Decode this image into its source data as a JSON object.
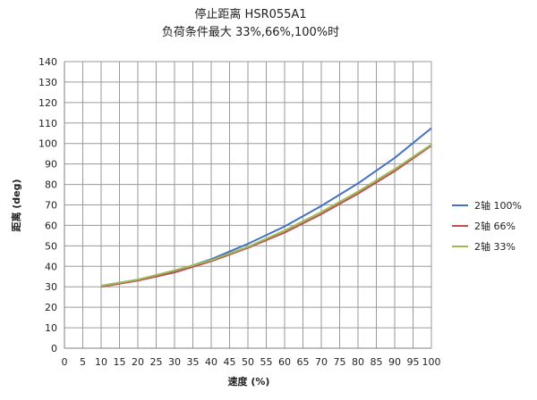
{
  "chart_data": {
    "type": "line",
    "title": "停止距离 HSR055A1",
    "subtitle": "负荷条件最大 33%,66%,100%时",
    "xlabel": "速度 (%)",
    "ylabel": "距离 (deg)",
    "xlim": [
      0,
      100
    ],
    "ylim": [
      0,
      140
    ],
    "x_ticks": [
      0,
      5,
      10,
      15,
      20,
      25,
      30,
      35,
      40,
      45,
      50,
      55,
      60,
      65,
      70,
      75,
      80,
      85,
      90,
      95,
      100
    ],
    "y_ticks": [
      0,
      10,
      20,
      30,
      40,
      50,
      60,
      70,
      80,
      90,
      100,
      110,
      120,
      130,
      140
    ],
    "grid": "horizontal and vertical",
    "legend_position": "right",
    "series": [
      {
        "name": "2轴 100%",
        "color": "#4472c4",
        "x": [
          10,
          20,
          30,
          40,
          50,
          60,
          70,
          80,
          90,
          100
        ],
        "y": [
          30.5,
          33.5,
          37.5,
          43.5,
          51,
          59.5,
          69.5,
          80.5,
          93,
          107.5
        ]
      },
      {
        "name": "2轴 66%",
        "color": "#c0504d",
        "x": [
          10,
          20,
          30,
          40,
          50,
          60,
          70,
          80,
          90,
          100
        ],
        "y": [
          30,
          33,
          37,
          42.5,
          49,
          56.5,
          65.5,
          75.5,
          86.5,
          99
        ]
      },
      {
        "name": "2轴 33%",
        "color": "#9bbb59",
        "x": [
          10,
          20,
          30,
          40,
          50,
          60,
          70,
          80,
          90,
          100
        ],
        "y": [
          30.5,
          33.5,
          38,
          43,
          49.5,
          57.5,
          66.5,
          76.5,
          87.5,
          99.5
        ]
      }
    ]
  }
}
